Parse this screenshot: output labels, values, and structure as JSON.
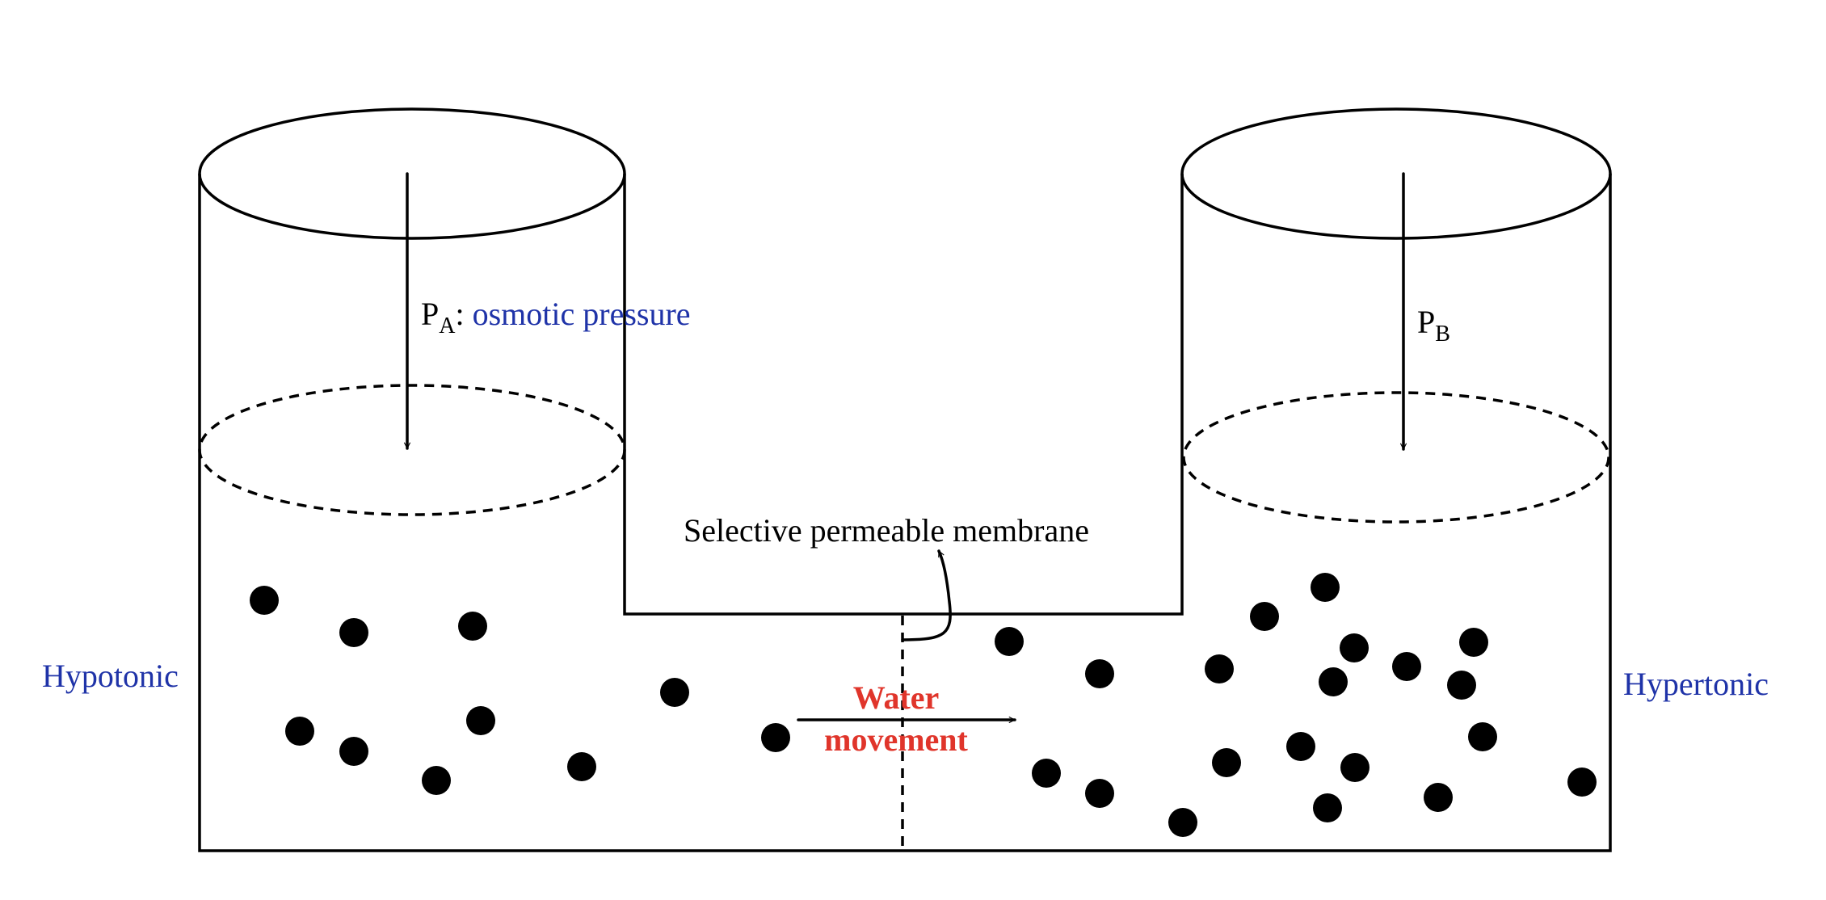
{
  "labels": {
    "pressure_a_symbol": "P",
    "pressure_a_subscript": "A",
    "pressure_a_colon": ": ",
    "pressure_a_description": "osmotic pressure",
    "pressure_b_symbol": "P",
    "pressure_b_subscript": "B",
    "membrane": "Selective permeable membrane",
    "water_line1": "Water",
    "water_line2": "movement",
    "left_side": "Hypotonic",
    "right_side": "Hypertonic"
  },
  "colors": {
    "blue_label": "#1f33a8",
    "red_label": "#e0352b",
    "ink": "#000000"
  }
}
